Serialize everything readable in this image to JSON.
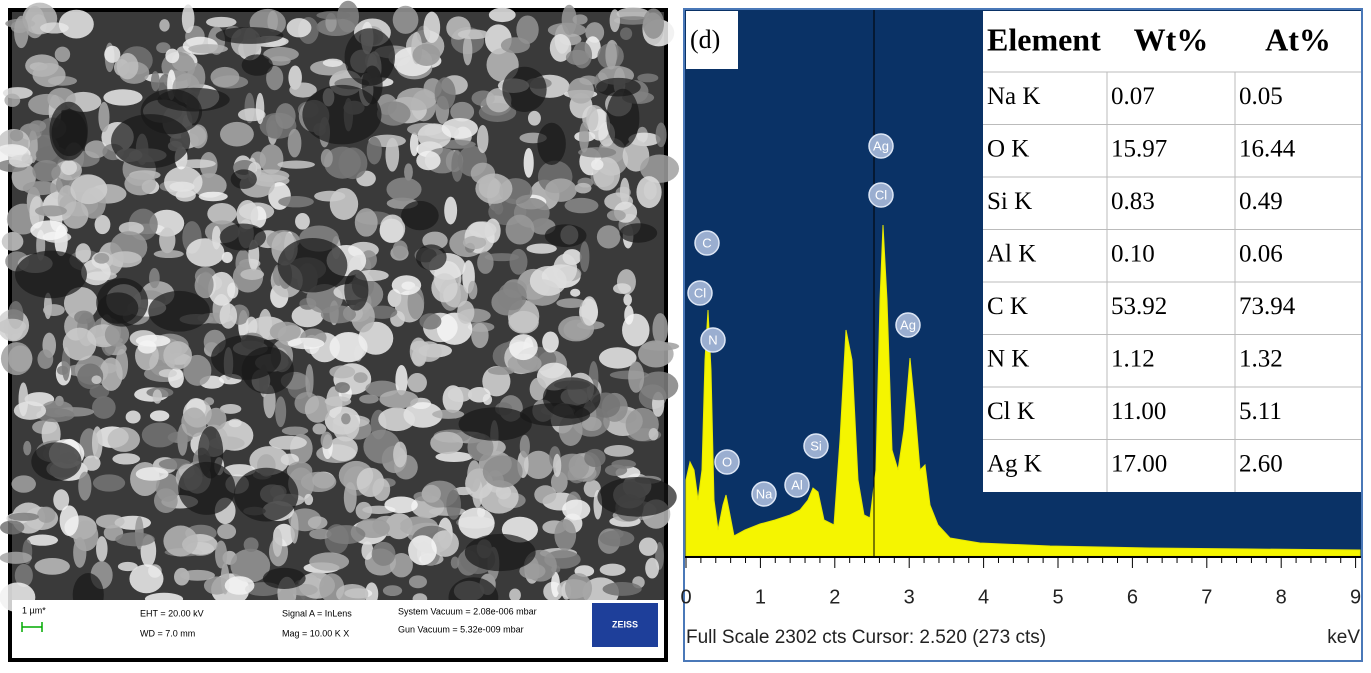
{
  "sem_panel": {
    "scale_bar": "1 µm*",
    "eht": "EHT = 20.00 kV",
    "wd": "WD = 7.0 mm",
    "signal": "Signal A = InLens",
    "mag": "Mag =  10.00 K X",
    "system_vacuum": "System Vacuum = 2.08e-006 mbar",
    "gun_vacuum": "Gun Vacuum = 5.32e-009 mbar",
    "logo": "ZEISS"
  },
  "eds_panel": {
    "panel_label": "(d)",
    "table": {
      "header": [
        "Element",
        "Wt%",
        "At%"
      ],
      "rows": [
        [
          "Na K",
          "0.07",
          "0.05"
        ],
        [
          "O K",
          "15.97",
          "16.44"
        ],
        [
          "Si K",
          "0.83",
          "0.49"
        ],
        [
          "Al K",
          "0.10",
          "0.06"
        ],
        [
          "C K",
          "53.92",
          "73.94"
        ],
        [
          "N K",
          "1.12",
          "1.32"
        ],
        [
          "Cl K",
          "11.00",
          "5.11"
        ],
        [
          "Ag K",
          "17.00",
          "2.60"
        ]
      ]
    },
    "peak_labels": [
      "C",
      "Cl",
      "N",
      "O",
      "Na",
      "Al",
      "Si",
      "Ag",
      "Cl",
      "Ag"
    ],
    "x_ticks": [
      0,
      1,
      2,
      3,
      4,
      5,
      6,
      7,
      8,
      9
    ],
    "footer": "Full Scale 2302 cts Cursor: 2.520  (273 cts)",
    "x_unit": "keV"
  }
}
